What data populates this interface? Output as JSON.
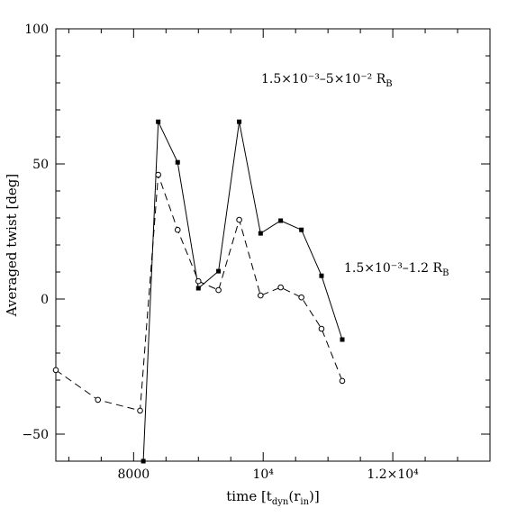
{
  "chart_data": {
    "type": "line",
    "xlabel": "time [t_dyn(r_in)]",
    "ylabel": "Averaged twist [deg]",
    "xlim": [
      6800,
      13500
    ],
    "ylim": [
      -60,
      100
    ],
    "xticks": [
      {
        "value": 8000,
        "label": "8000"
      },
      {
        "value": 10000,
        "label": "10⁴"
      },
      {
        "value": 12000,
        "label": "1.2×10⁴"
      }
    ],
    "yticks": [
      {
        "value": -50,
        "label": "−50"
      },
      {
        "value": 0,
        "label": "0"
      },
      {
        "value": 50,
        "label": "50"
      },
      {
        "value": 100,
        "label": "100"
      }
    ],
    "grid": false,
    "series": [
      {
        "name": "1.5×10⁻³–5×10⁻² R_B",
        "style": "solid",
        "marker": "filled-square",
        "color": "#000000",
        "x": [
          8150,
          8380,
          8680,
          9000,
          9310,
          9630,
          9960,
          10270,
          10590,
          10900,
          11220
        ],
        "y": [
          -60,
          65.6,
          50.6,
          4.0,
          10.3,
          65.6,
          24.3,
          29.0,
          25.6,
          8.6,
          -15.0
        ]
      },
      {
        "name": "1.5×10⁻³–1.2 R_B",
        "style": "dashed",
        "marker": "open-circle",
        "color": "#000000",
        "x": [
          6800,
          7450,
          8100,
          8380,
          8680,
          9000,
          9310,
          9630,
          9960,
          10270,
          10590,
          10900,
          11220
        ],
        "y": [
          -26.3,
          -37.3,
          -41.3,
          46.0,
          25.6,
          6.6,
          3.3,
          29.3,
          1.3,
          4.3,
          0.6,
          -11.0,
          -30.3
        ]
      }
    ],
    "annotations": [
      {
        "series_index": 0,
        "text": "1.5×10⁻³–5×10⁻² R_B",
        "x": 10100,
        "y": 81
      },
      {
        "series_index": 1,
        "text": "1.5×10⁻³–1.2 R_B",
        "x": 11300,
        "y": 11
      }
    ]
  }
}
